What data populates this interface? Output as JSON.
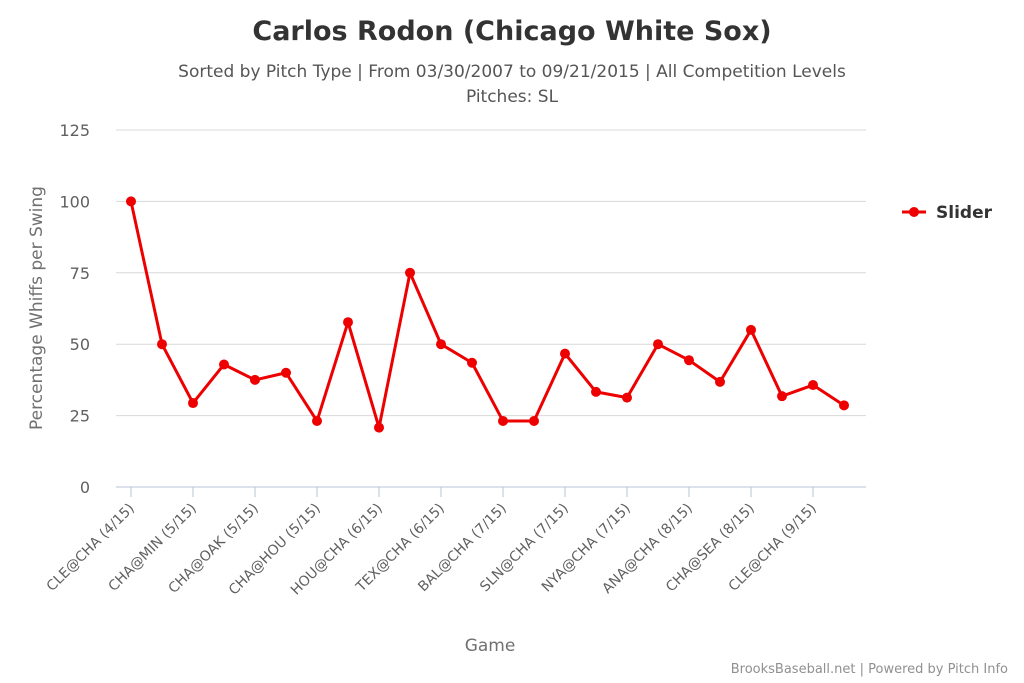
{
  "chart_data": {
    "type": "line",
    "title": "Carlos Rodon (Chicago White Sox)",
    "subtitle_line1": "Sorted by Pitch Type | From 03/30/2007 to 09/21/2015 | All Competition Levels",
    "subtitle_line2": "Pitches: SL",
    "xlabel": "Game",
    "ylabel": "Percentage Whiffs per Swing",
    "ylim": [
      0,
      125
    ],
    "yticks": [
      0,
      25,
      50,
      75,
      100,
      125
    ],
    "x_tick_labels": [
      {
        "index": 0,
        "label": "CLE@CHA (4/15)"
      },
      {
        "index": 2,
        "label": "CHA@MIN (5/15)"
      },
      {
        "index": 4,
        "label": "CHA@OAK (5/15)"
      },
      {
        "index": 6,
        "label": "CHA@HOU (5/15)"
      },
      {
        "index": 8,
        "label": "HOU@CHA (6/15)"
      },
      {
        "index": 10,
        "label": "TEX@CHA (6/15)"
      },
      {
        "index": 12,
        "label": "BAL@CHA (7/15)"
      },
      {
        "index": 14,
        "label": "SLN@CHA (7/15)"
      },
      {
        "index": 16,
        "label": "NYA@CHA (7/15)"
      },
      {
        "index": 18,
        "label": "ANA@CHA (8/15)"
      },
      {
        "index": 20,
        "label": "CHA@SEA (8/15)"
      },
      {
        "index": 22,
        "label": "CLE@CHA (9/15)"
      }
    ],
    "grid": true,
    "legend_position": "right",
    "series": [
      {
        "name": "Slider",
        "color": "#ee0000",
        "values": [
          100,
          50,
          29.4,
          42.9,
          37.5,
          40,
          23.1,
          57.7,
          20.8,
          75,
          50,
          43.5,
          23.1,
          23.1,
          46.7,
          33.3,
          31.3,
          50,
          44.4,
          36.8,
          55,
          31.8,
          35.7,
          28.6
        ]
      }
    ]
  },
  "credits": "BrooksBaseball.net | Powered by Pitch Info"
}
